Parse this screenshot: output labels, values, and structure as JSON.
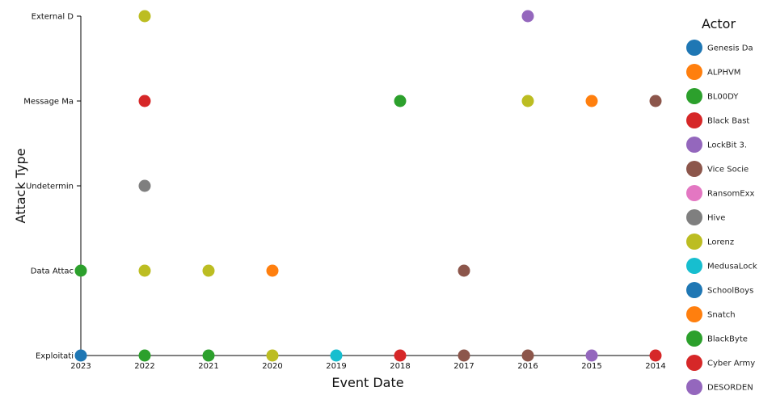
{
  "chart_data": {
    "type": "scatter",
    "xlabel": "Event Date",
    "ylabel": "Attack Type",
    "x_categories": [
      "2023",
      "2022",
      "2021",
      "2020",
      "2019",
      "2018",
      "2017",
      "2016",
      "2015",
      "2014"
    ],
    "y_categories": [
      "Exploitati",
      "Data Attac",
      "Undetermin",
      "Message Ma",
      "External D"
    ],
    "legend": {
      "title": "Actor",
      "placement": "right",
      "items": [
        {
          "label": "Genesis Da",
          "color": "#1f77b4"
        },
        {
          "label": "ALPHVM",
          "color": "#ff7f0e"
        },
        {
          "label": "BL00DY",
          "color": "#2ca02c"
        },
        {
          "label": "Black Bast",
          "color": "#d62728"
        },
        {
          "label": "LockBit 3.",
          "color": "#9467bd"
        },
        {
          "label": "Vice Socie",
          "color": "#8c564b"
        },
        {
          "label": "RansomExx",
          "color": "#e377c2"
        },
        {
          "label": "Hive",
          "color": "#7f7f7f"
        },
        {
          "label": "Lorenz",
          "color": "#bcbd22"
        },
        {
          "label": "MedusaLock",
          "color": "#17becf"
        },
        {
          "label": "SchoolBoys",
          "color": "#1f77b4"
        },
        {
          "label": "Snatch",
          "color": "#ff7f0e"
        },
        {
          "label": "BlackByte",
          "color": "#2ca02c"
        },
        {
          "label": "Cyber Army",
          "color": "#d62728"
        },
        {
          "label": "DESORDEN",
          "color": "#9467bd"
        }
      ]
    },
    "points": [
      {
        "x": "2022",
        "y": "External D",
        "color": "#bcbd22"
      },
      {
        "x": "2016",
        "y": "External D",
        "color": "#9467bd"
      },
      {
        "x": "2022",
        "y": "Message Ma",
        "color": "#d62728"
      },
      {
        "x": "2018",
        "y": "Message Ma",
        "color": "#2ca02c"
      },
      {
        "x": "2016",
        "y": "Message Ma",
        "color": "#bcbd22"
      },
      {
        "x": "2015",
        "y": "Message Ma",
        "color": "#ff7f0e"
      },
      {
        "x": "2014",
        "y": "Message Ma",
        "color": "#8c564b"
      },
      {
        "x": "2022",
        "y": "Undetermin",
        "color": "#7f7f7f"
      },
      {
        "x": "2023",
        "y": "Data Attac",
        "color": "#2ca02c"
      },
      {
        "x": "2022",
        "y": "Data Attac",
        "color": "#bcbd22"
      },
      {
        "x": "2021",
        "y": "Data Attac",
        "color": "#bcbd22"
      },
      {
        "x": "2020",
        "y": "Data Attac",
        "color": "#ff7f0e"
      },
      {
        "x": "2017",
        "y": "Data Attac",
        "color": "#8c564b"
      },
      {
        "x": "2023",
        "y": "Exploitati",
        "color": "#1f77b4"
      },
      {
        "x": "2022",
        "y": "Exploitati",
        "color": "#2ca02c"
      },
      {
        "x": "2021",
        "y": "Exploitati",
        "color": "#2ca02c"
      },
      {
        "x": "2020",
        "y": "Exploitati",
        "color": "#bcbd22"
      },
      {
        "x": "2019",
        "y": "Exploitati",
        "color": "#17becf"
      },
      {
        "x": "2018",
        "y": "Exploitati",
        "color": "#d62728"
      },
      {
        "x": "2017",
        "y": "Exploitati",
        "color": "#8c564b"
      },
      {
        "x": "2016",
        "y": "Exploitati",
        "color": "#8c564b"
      },
      {
        "x": "2015",
        "y": "Exploitati",
        "color": "#9467bd"
      },
      {
        "x": "2014",
        "y": "Exploitati",
        "color": "#d62728"
      }
    ]
  }
}
